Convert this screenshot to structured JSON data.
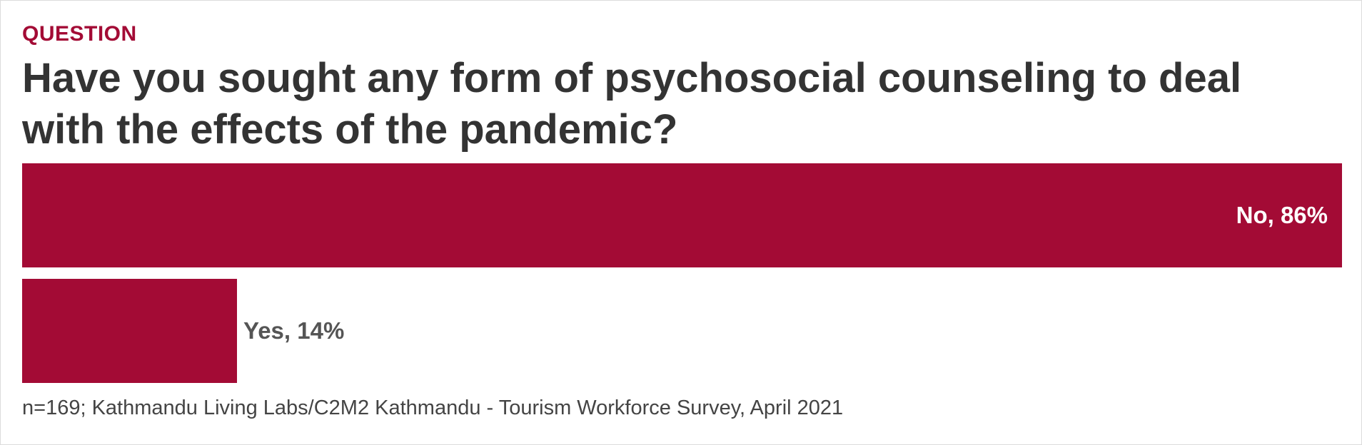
{
  "header": {
    "kicker": "QUESTION",
    "title": "Have you sought any form of psychosocial counseling to deal with the effects of the pandemic?"
  },
  "colors": {
    "bar": "#a30b35",
    "kicker": "#a30b35",
    "title": "#333333",
    "label_inside": "#ffffff",
    "label_outside": "#555555"
  },
  "chart_data": {
    "type": "bar",
    "orientation": "horizontal",
    "title": "Have you sought any form of psychosocial counseling to deal with the effects of the pandemic?",
    "categories": [
      "No",
      "Yes"
    ],
    "values": [
      86,
      14
    ],
    "labels": [
      "No, 86%",
      "Yes, 14%"
    ],
    "unit": "%",
    "xlim": [
      0,
      86
    ],
    "grid": false,
    "legend": "none"
  },
  "footnote": "n=169; Kathmandu Living Labs/C2M2 Kathmandu - Tourism Workforce Survey, April 2021"
}
